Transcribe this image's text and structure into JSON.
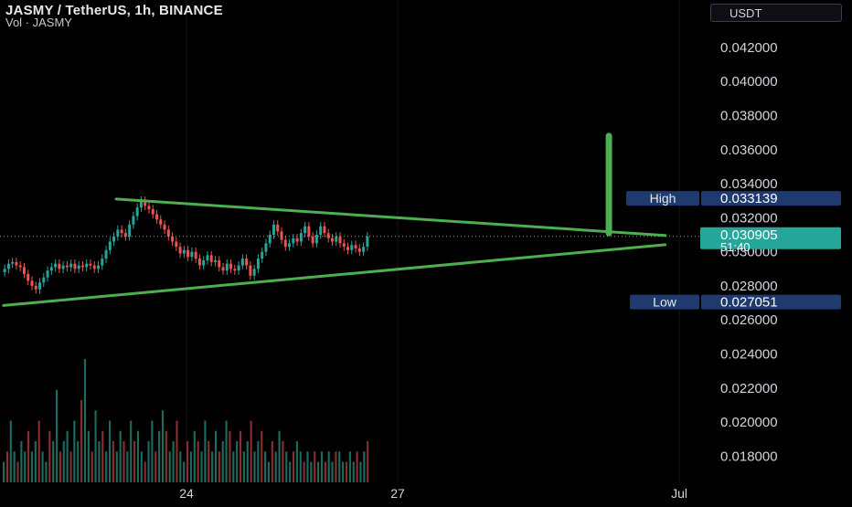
{
  "header": {
    "title": "JASMY / TetherUS, 1h, BINANCE",
    "subtitle": "Vol · JASMY",
    "currency": "USDT"
  },
  "colors": {
    "up": "#26a69a",
    "down": "#ef5350",
    "trendline": "#4caf50",
    "last_price_bg": "#26a69a",
    "label_bg": "#1e3a6e",
    "axis_text": "#d1d4dc"
  },
  "chart_data": {
    "type": "candlestick",
    "symbol": "JASMY / TetherUS",
    "interval": "1h",
    "exchange": "BINANCE",
    "y_axis_ticks": [
      "0.042000",
      "0.040000",
      "0.038000",
      "0.036000",
      "0.034000",
      "0.032000",
      "0.030000",
      "0.028000",
      "0.026000",
      "0.024000",
      "0.022000",
      "0.020000",
      "0.018000"
    ],
    "ylim": [
      0.0177,
      0.0428
    ],
    "x_axis_ticks": [
      {
        "label": "24",
        "x": 24
      },
      {
        "label": "27",
        "x": 27
      },
      {
        "label": "Jul",
        "x": 31
      }
    ],
    "x_range": [
      21.35,
      31.35
    ],
    "high": {
      "label": "High",
      "value": "0.033139"
    },
    "low": {
      "label": "Low",
      "value": "0.027051"
    },
    "last_price": {
      "value": "0.030905",
      "countdown": "51:40"
    },
    "trendlines": [
      {
        "name": "upper",
        "from": [
          23.0,
          0.0331
        ],
        "to": [
          30.8,
          0.03096
        ]
      },
      {
        "name": "lower",
        "from": [
          21.4,
          0.02685
        ],
        "to": [
          30.8,
          0.03042
        ]
      }
    ],
    "target_bar": {
      "x": 30.0,
      "from": 0.0311,
      "to": 0.0368
    },
    "price_series": [
      0.029,
      0.0293,
      0.0294,
      0.0292,
      0.0291,
      0.0287,
      0.0283,
      0.028,
      0.0278,
      0.0282,
      0.0285,
      0.0289,
      0.0291,
      0.0293,
      0.029,
      0.0292,
      0.0291,
      0.0293,
      0.029,
      0.0292,
      0.0291,
      0.0293,
      0.0292,
      0.029,
      0.0292,
      0.0296,
      0.0301,
      0.0306,
      0.0309,
      0.0313,
      0.0311,
      0.0309,
      0.0316,
      0.0321,
      0.0326,
      0.033,
      0.0327,
      0.0325,
      0.0322,
      0.0319,
      0.0316,
      0.0313,
      0.0309,
      0.0306,
      0.0303,
      0.0299,
      0.0301,
      0.0297,
      0.03,
      0.0296,
      0.0292,
      0.0295,
      0.0298,
      0.0294,
      0.0295,
      0.0291,
      0.0289,
      0.0293,
      0.029,
      0.0289,
      0.0292,
      0.0296,
      0.0292,
      0.0286,
      0.029,
      0.0296,
      0.03,
      0.0305,
      0.031,
      0.0316,
      0.0312,
      0.0307,
      0.0303,
      0.0305,
      0.0308,
      0.0306,
      0.0311,
      0.0315,
      0.0309,
      0.0305,
      0.031,
      0.0315,
      0.0311,
      0.0308,
      0.0306,
      0.0309,
      0.0305,
      0.0303,
      0.0301,
      0.0304,
      0.0302,
      0.03,
      0.0303,
      0.0309
    ],
    "volume_series": [
      2,
      3,
      6,
      3,
      2,
      4,
      3,
      5,
      3,
      4,
      6,
      3,
      2,
      5,
      4,
      9,
      3,
      4,
      5,
      3,
      6,
      4,
      8,
      12,
      5,
      3,
      7,
      4,
      5,
      3,
      6,
      4,
      3,
      5,
      4,
      3,
      6,
      4,
      5,
      3,
      2,
      4,
      6,
      3,
      5,
      7,
      5,
      3,
      4,
      6,
      3,
      2,
      4,
      3,
      5,
      4,
      3,
      6,
      4,
      3,
      5,
      3,
      4,
      6,
      5,
      3,
      4,
      5,
      3,
      4,
      6,
      3,
      4,
      5,
      3,
      2,
      4,
      3,
      5,
      4,
      3,
      2,
      3,
      4,
      3,
      2,
      3,
      2,
      3,
      2,
      3,
      2,
      3,
      2,
      3,
      3,
      2,
      2,
      3,
      2,
      3,
      2,
      3,
      4
    ]
  }
}
